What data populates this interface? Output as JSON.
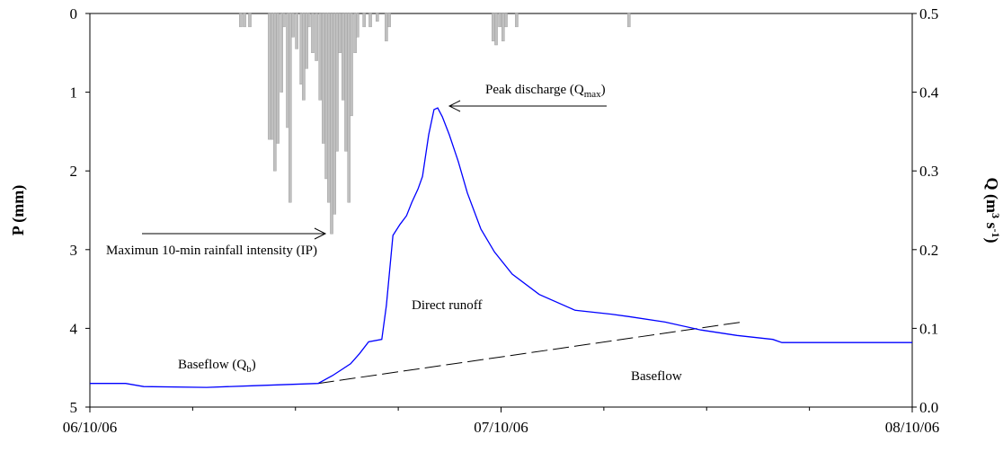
{
  "chart_data": {
    "type": "combo",
    "ylabel": {
      "text": "P (mm)"
    },
    "y2label": {
      "text": "Q (m",
      "sup1": "3",
      "mid": " s",
      "sup2": "-1",
      "after": ")"
    },
    "xlim": [
      0,
      2
    ],
    "xticks": [
      {
        "value": 0,
        "label": "06/10/06"
      },
      {
        "value": 1,
        "label": "07/10/06"
      },
      {
        "value": 2,
        "label": "08/10/06"
      }
    ],
    "xminorticks": [
      0.25,
      0.5,
      0.75,
      1.25,
      1.5,
      1.75
    ],
    "ylim": [
      0,
      5
    ],
    "yticks": [
      0,
      1,
      2,
      3,
      4,
      5
    ],
    "y_inverted": true,
    "y2lim": [
      0,
      0.5
    ],
    "y2ticks": [
      {
        "value": 0,
        "label": "0.0"
      },
      0.1,
      0.2,
      0.3,
      0.4,
      0.5
    ],
    "rainfall": {
      "color": "#c0c0c0",
      "x": [
        0.367,
        0.376,
        0.389,
        0.437,
        0.444,
        0.45,
        0.457,
        0.466,
        0.472,
        0.481,
        0.487,
        0.494,
        0.503,
        0.514,
        0.52,
        0.527,
        0.533,
        0.542,
        0.551,
        0.56,
        0.568,
        0.575,
        0.581,
        0.588,
        0.595,
        0.601,
        0.608,
        0.616,
        0.623,
        0.63,
        0.636,
        0.645,
        0.651,
        0.667,
        0.682,
        0.699,
        0.721,
        0.728,
        0.981,
        0.988,
        0.997,
        1.005,
        1.012,
        1.038,
        1.311
      ],
      "values": [
        0.17,
        0.17,
        0.17,
        1.6,
        1.6,
        2.0,
        1.65,
        1.0,
        0.17,
        1.45,
        2.4,
        0.3,
        0.45,
        0.9,
        1.1,
        0.7,
        0.17,
        0.5,
        0.6,
        1.1,
        1.65,
        2.1,
        2.4,
        2.8,
        2.55,
        1.75,
        0.5,
        1.1,
        1.75,
        2.4,
        1.3,
        0.5,
        0.3,
        0.17,
        0.17,
        0.1,
        0.35,
        0.17,
        0.35,
        0.4,
        0.17,
        0.35,
        0.17,
        0.17,
        0.17
      ]
    },
    "discharge": {
      "color": "#0000ff",
      "axis": "y2",
      "x": [
        0,
        0.087,
        0.131,
        0.284,
        0.394,
        0.555,
        0.59,
        0.634,
        0.656,
        0.678,
        0.71,
        0.721,
        0.737,
        0.754,
        0.77,
        0.783,
        0.798,
        0.809,
        0.824,
        0.837,
        0.846,
        0.857,
        0.874,
        0.896,
        0.918,
        0.951,
        0.984,
        1.027,
        1.093,
        1.18,
        1.268,
        1.311,
        1.399,
        1.486,
        1.574,
        1.661,
        1.683,
        2.0
      ],
      "values": [
        0.03,
        0.03,
        0.026,
        0.025,
        0.027,
        0.03,
        0.04,
        0.055,
        0.068,
        0.083,
        0.086,
        0.129,
        0.218,
        0.232,
        0.243,
        0.26,
        0.277,
        0.293,
        0.346,
        0.378,
        0.38,
        0.369,
        0.346,
        0.312,
        0.272,
        0.226,
        0.197,
        0.169,
        0.143,
        0.123,
        0.118,
        0.115,
        0.108,
        0.098,
        0.091,
        0.086,
        0.082,
        0.082
      ]
    },
    "baseflow_line": {
      "color": "#000000",
      "axis": "y2",
      "x": [
        0.555,
        1.585
      ],
      "values": [
        0.03,
        0.108
      ]
    },
    "annotations": [
      {
        "text": "Peak discharge (Q",
        "sub": "max",
        "after": ")"
      },
      {
        "text": "Maximun 10-min rainfall intensity (IP)"
      },
      {
        "text": "Direct runoff"
      },
      {
        "text": "Baseflow (Q",
        "sub": "b",
        "after": ")"
      },
      {
        "text": "Baseflow"
      }
    ]
  }
}
